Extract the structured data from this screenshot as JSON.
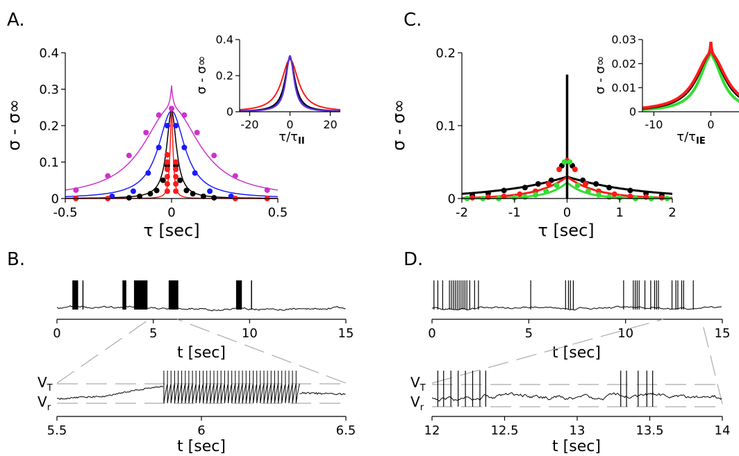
{
  "panels": [
    {
      "id": "A",
      "label": "A."
    },
    {
      "id": "B",
      "label": "B."
    },
    {
      "id": "C",
      "label": "C."
    },
    {
      "id": "D",
      "label": "D."
    }
  ],
  "colors": {
    "magenta": "#cc33cc",
    "blue": "#1a1aff",
    "black": "#000000",
    "red": "#ff1a1a",
    "green": "#33dd33",
    "purple": "#6633cc",
    "dash": "#aaaaaa"
  },
  "chart_data": [
    {
      "id": "A-main",
      "type": "line",
      "xlabel": "τ [sec]",
      "ylabel": "σ - σ∞",
      "xlim": [
        -0.5,
        0.5
      ],
      "ylim": [
        0,
        0.4
      ],
      "xticks": [
        "-0.5",
        "0",
        "0.5"
      ],
      "yticks": [
        "0",
        "0.1",
        "0.2",
        "0.3",
        "0.4"
      ],
      "series": [
        {
          "color": "magenta",
          "peak": 0.25,
          "width": 0.16,
          "points_x": [
            -0.45,
            -0.3,
            -0.2,
            -0.12,
            -0.06,
            0,
            0.06,
            0.12,
            0.2,
            0.3,
            0.45
          ],
          "points_y": [
            0.023,
            0.062,
            0.118,
            0.181,
            0.229,
            0.247,
            0.229,
            0.181,
            0.118,
            0.062,
            0.023
          ]
        },
        {
          "color": "blue",
          "peak": 0.24,
          "width": 0.075,
          "points_x": [
            -0.28,
            -0.18,
            -0.11,
            -0.06,
            -0.02,
            0.02,
            0.06,
            0.11,
            0.18,
            0.28
          ],
          "points_y": [
            0.006,
            0.02,
            0.07,
            0.14,
            0.2,
            0.2,
            0.14,
            0.07,
            0.02,
            0.006
          ]
        },
        {
          "color": "black",
          "peak": 0.24,
          "width": 0.028,
          "points_x": [
            -0.2,
            -0.15,
            -0.1,
            -0.07,
            -0.04,
            -0.02,
            0.02,
            0.04,
            0.07,
            0.1,
            0.15,
            0.2
          ],
          "points_y": [
            0.002,
            0.006,
            0.013,
            0.022,
            0.05,
            0.09,
            0.09,
            0.05,
            0.022,
            0.013,
            0.006,
            0.002
          ]
        },
        {
          "color": "red",
          "peak": 0.24,
          "width": 0.008,
          "points_x": [
            -0.45,
            -0.3,
            -0.02,
            -0.02,
            -0.02,
            -0.02,
            -0.02,
            -0.02,
            0.02,
            0.02,
            0.02,
            0.02,
            0.02,
            0.3,
            0.45
          ],
          "points_y": [
            0.0,
            0.0,
            0.02,
            0.04,
            0.06,
            0.08,
            0.1,
            0.12,
            0.02,
            0.04,
            0.06,
            0.08,
            0.1,
            0.0,
            0.0
          ]
        }
      ]
    },
    {
      "id": "A-inset",
      "type": "line",
      "xlabel": "τ/τ_II",
      "ylabel": "σ - σ∞",
      "xlim": [
        -25,
        25
      ],
      "ylim": [
        0,
        0.4
      ],
      "xticks": [
        "-20",
        "0",
        "20"
      ],
      "yticks": [
        "0",
        "0.2",
        "0.4"
      ],
      "series": [
        {
          "color": "red",
          "peak": 0.29,
          "width": 5
        },
        {
          "color": "black",
          "peak": 0.3,
          "width": 3
        },
        {
          "color": "blue",
          "peak": 0.3,
          "width": 2.6
        },
        {
          "color": "purple",
          "peak": 0.31,
          "width": 2.4
        }
      ]
    },
    {
      "id": "C-main",
      "type": "line",
      "xlabel": "τ [sec]",
      "ylabel": "σ - σ∞",
      "xlim": [
        -2,
        2
      ],
      "ylim": [
        0,
        0.2
      ],
      "xticks": [
        "-2",
        "-1",
        "0",
        "1",
        "2"
      ],
      "yticks": [
        "0",
        "0.1",
        "0.2"
      ],
      "series": [
        {
          "color": "black",
          "peak": 0.03,
          "width": 1.3,
          "points_x": [
            -1.8,
            -1.5,
            -1.2,
            -0.8,
            -0.55,
            -0.3,
            -0.1,
            0.1,
            0.3,
            0.55,
            0.8,
            1.2,
            1.5,
            1.8
          ],
          "points_y": [
            0.004,
            0.007,
            0.011,
            0.015,
            0.02,
            0.025,
            0.045,
            0.045,
            0.025,
            0.02,
            0.015,
            0.011,
            0.007,
            0.004
          ]
        },
        {
          "color": "red",
          "peak": 0.03,
          "width": 0.55,
          "points_x": [
            -1.8,
            -1.5,
            -1.2,
            -0.9,
            -0.6,
            -0.35,
            -0.15,
            0,
            0.15,
            0.35,
            0.6,
            0.9,
            1.2,
            1.5,
            1.8
          ],
          "points_y": [
            0.001,
            0.002,
            0.003,
            0.006,
            0.01,
            0.02,
            0.04,
            0.052,
            0.04,
            0.02,
            0.01,
            0.006,
            0.003,
            0.002,
            0.001
          ]
        },
        {
          "color": "green",
          "peak": 0.022,
          "width": 0.35,
          "points_x": [
            -1.9,
            -1.6,
            -1.3,
            -1.0,
            -0.8,
            -0.6,
            -0.4,
            -0.2,
            -0.05,
            0.05,
            0.2,
            0.4,
            0.6,
            0.8,
            1.0,
            1.3,
            1.6,
            1.9
          ],
          "points_y": [
            0.0,
            0.0,
            0.0,
            0.001,
            0.002,
            0.005,
            0.01,
            0.018,
            0.05,
            0.05,
            0.018,
            0.01,
            0.005,
            0.002,
            0.001,
            0.0,
            0.0,
            0.0
          ]
        }
      ],
      "spike": {
        "x": 0,
        "y": 0.17
      }
    },
    {
      "id": "C-inset",
      "type": "line",
      "xlabel": "τ/τ_IE",
      "ylabel": "σ - σ∞",
      "xlim": [
        -12,
        12
      ],
      "ylim": [
        0,
        0.03
      ],
      "xticks": [
        "-10",
        "0",
        "10"
      ],
      "yticks": [
        "0",
        "0.01",
        "0.02",
        "0.03"
      ],
      "series": [
        {
          "color": "green",
          "peak": 0.023,
          "width": 2.4
        },
        {
          "color": "black",
          "peak": 0.024,
          "width": 3
        },
        {
          "color": "red",
          "peak": 0.024,
          "width": 3.2
        }
      ]
    },
    {
      "id": "B-top",
      "type": "line",
      "xlabel": "t [sec]",
      "xlim": [
        0,
        15
      ],
      "xticks": [
        "0",
        "5",
        "10",
        "15"
      ],
      "bursts": [
        [
          0.8,
          1.1
        ],
        [
          1.35,
          1.4
        ],
        [
          3.4,
          3.6
        ],
        [
          4.0,
          4.7
        ],
        [
          5.8,
          6.3
        ],
        [
          9.3,
          9.6
        ],
        [
          10.1,
          10.12
        ]
      ]
    },
    {
      "id": "B-bottom",
      "type": "line",
      "xlabel": "t [sec]",
      "xlim": [
        5.5,
        6.5
      ],
      "xticks": [
        "5.5",
        "6",
        "6.5"
      ],
      "levels": [
        "V_T",
        "V_r"
      ],
      "burst": [
        5.87,
        6.34
      ]
    },
    {
      "id": "D-top",
      "type": "line",
      "xlabel": "t [sec]",
      "xlim": [
        0,
        15
      ],
      "xticks": [
        "0",
        "5",
        "10",
        "15"
      ],
      "spikes": [
        0.1,
        0.3,
        0.55,
        0.9,
        1.0,
        1.1,
        1.2,
        1.3,
        1.4,
        1.5,
        1.6,
        1.7,
        1.8,
        1.95,
        2.2,
        2.4,
        5.1,
        6.9,
        7.05,
        7.15,
        7.3,
        9.9,
        10.4,
        10.5,
        10.6,
        10.7,
        11.0,
        11.3,
        11.5,
        11.6,
        11.7,
        12.4,
        12.6,
        12.7,
        12.9,
        13.0,
        13.5
      ]
    },
    {
      "id": "D-bottom",
      "type": "line",
      "xlabel": "t [sec]",
      "xlim": [
        12,
        14
      ],
      "xticks": [
        "12",
        "12.5",
        "13",
        "13.5",
        "14"
      ],
      "levels": [
        "V_T",
        "V_r"
      ],
      "spikes": [
        12.04,
        12.08,
        12.13,
        12.18,
        12.23,
        12.28,
        12.33,
        12.37,
        13.3,
        13.34,
        13.42,
        13.48,
        13.52
      ]
    }
  ]
}
